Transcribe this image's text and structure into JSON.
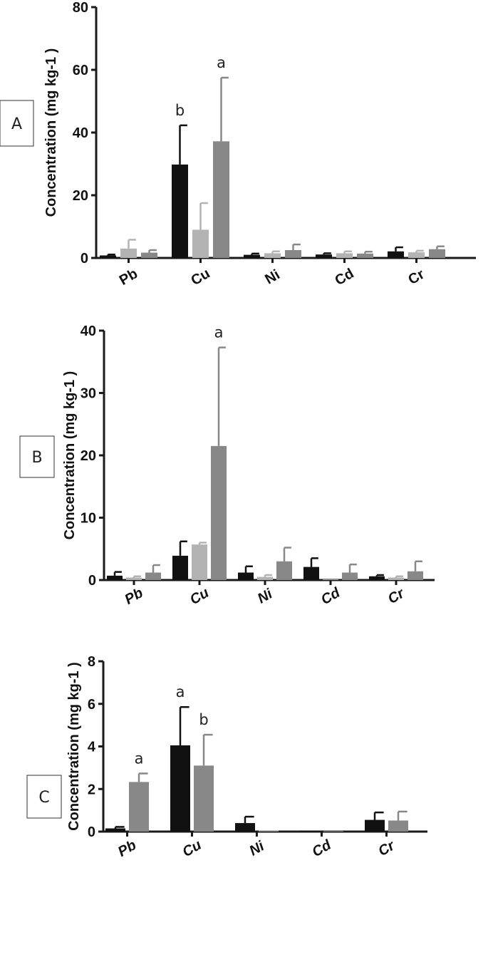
{
  "chart_data": [
    {
      "panel_label": "A",
      "type": "bar",
      "categories": [
        "Pb",
        "Cu",
        "Ni",
        "Cd",
        "Cr"
      ],
      "categories_italic": false,
      "ylabel": "Concentration (mg kg-1 )",
      "ylim": [
        0,
        80
      ],
      "yticks": [
        0,
        20,
        40,
        60,
        80
      ],
      "grid": false,
      "series": [
        {
          "color": "#111111",
          "values": [
            0.8,
            29.8,
            1.0,
            1.1,
            2.1
          ],
          "errors": [
            0.3,
            12.5,
            0.4,
            0.4,
            1.3
          ]
        },
        {
          "color": "#b3b3b3",
          "values": [
            3.0,
            9.0,
            1.5,
            1.5,
            1.8
          ],
          "errors": [
            2.8,
            8.5,
            0.6,
            0.6,
            0.5
          ]
        },
        {
          "color": "#888888",
          "values": [
            1.7,
            37.2,
            2.5,
            1.4,
            2.8
          ],
          "errors": [
            0.8,
            20.3,
            1.8,
            0.6,
            0.9
          ]
        }
      ],
      "annotations": [
        {
          "category": "Cu",
          "series": 0,
          "text": "b"
        },
        {
          "category": "Cu",
          "series": 2,
          "text": "a"
        }
      ]
    },
    {
      "panel_label": "B",
      "type": "bar",
      "categories": [
        "Pb",
        "Cu",
        "Ni",
        "Cd",
        "Cr"
      ],
      "categories_italic": true,
      "ylabel": "Concentration (mg kg-1 )",
      "ylim": [
        0,
        40
      ],
      "yticks": [
        0,
        10,
        20,
        30,
        40
      ],
      "grid": false,
      "series": [
        {
          "color": "#111111",
          "values": [
            0.7,
            3.9,
            1.2,
            2.1,
            0.6
          ],
          "errors": [
            0.6,
            2.3,
            1.0,
            1.4,
            0.2
          ]
        },
        {
          "color": "#b3b3b3",
          "values": [
            0.4,
            5.7,
            0.5,
            0.1,
            0.4
          ],
          "errors": [
            0.2,
            0.3,
            0.3,
            0.0,
            0.2
          ]
        },
        {
          "color": "#888888",
          "values": [
            1.2,
            21.5,
            3.0,
            1.2,
            1.4
          ],
          "errors": [
            1.2,
            15.8,
            2.2,
            1.3,
            1.6
          ]
        }
      ],
      "annotations": [
        {
          "category": "Cu",
          "series": 2,
          "text": "a"
        }
      ]
    },
    {
      "panel_label": "C",
      "type": "bar",
      "categories": [
        "Pb",
        "Cu",
        "Ni",
        "Cd",
        "Cr"
      ],
      "categories_italic": true,
      "ylabel": "Concentration (mg kg-1 )",
      "ylim": [
        0,
        8
      ],
      "yticks": [
        0,
        2,
        4,
        6,
        8
      ],
      "grid": false,
      "series": [
        {
          "color": "#111111",
          "values": [
            0.15,
            4.05,
            0.4,
            0.05,
            0.55
          ],
          "errors": [
            0.07,
            1.8,
            0.3,
            0.0,
            0.35
          ]
        },
        {
          "color": "#888888",
          "values": [
            2.33,
            3.1,
            0.05,
            0.03,
            0.52
          ],
          "errors": [
            0.4,
            1.45,
            0.0,
            0.0,
            0.42
          ]
        }
      ],
      "annotations": [
        {
          "category": "Pb",
          "series": 1,
          "text": "a"
        },
        {
          "category": "Cu",
          "series": 0,
          "text": "a"
        },
        {
          "category": "Cu",
          "series": 1,
          "text": "b"
        }
      ]
    }
  ]
}
